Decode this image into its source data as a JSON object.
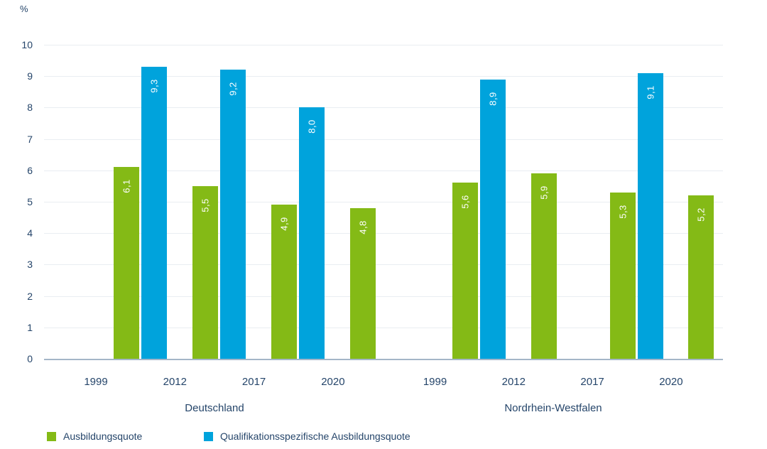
{
  "chart_data": {
    "type": "bar",
    "title": "",
    "xlabel": "",
    "ylabel": "%",
    "ylim": [
      0,
      10
    ],
    "yticks": [
      0,
      1,
      2,
      3,
      4,
      5,
      6,
      7,
      8,
      9,
      10
    ],
    "grid": true,
    "legend_position": "bottom",
    "categories": [
      "1999",
      "2012",
      "2017",
      "2020",
      "1999",
      "2012",
      "2017",
      "2020"
    ],
    "region_groups": [
      {
        "label": "Deutschland",
        "categories": [
          "1999",
          "2012",
          "2017",
          "2020"
        ]
      },
      {
        "label": "Nordrhein-Westfalen",
        "categories": [
          "1999",
          "2012",
          "2017",
          "2020"
        ]
      }
    ],
    "series": [
      {
        "name": "Ausbildungsquote",
        "color": "#84ba16",
        "values": [
          6.1,
          5.5,
          4.9,
          4.8,
          5.6,
          5.9,
          5.3,
          5.2
        ],
        "labels": [
          "6,1",
          "5,5",
          "4,9",
          "4,8",
          "5,6",
          "5,9",
          "5,3",
          "5,2"
        ]
      },
      {
        "name": "Qualifikationsspezifische Ausbildungsquote",
        "color": "#00a3dc",
        "values": [
          9.3,
          9.2,
          8.0,
          null,
          8.9,
          null,
          9.1,
          null
        ],
        "labels": [
          "9,3",
          "9,2",
          "8,0",
          null,
          "8,9",
          null,
          "9,1",
          null
        ]
      }
    ]
  }
}
